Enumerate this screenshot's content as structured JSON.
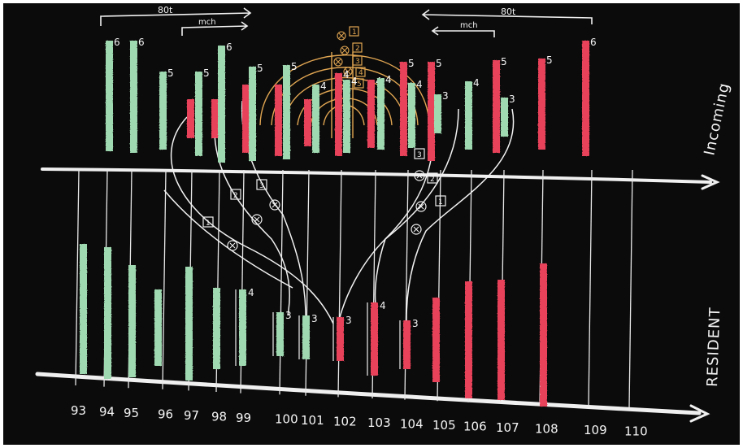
{
  "axes": {
    "top_label": "Incoming",
    "bottom_label": "RESIDENT"
  },
  "ticks": [
    "93",
    "94",
    "95",
    "96",
    "97",
    "98",
    "99",
    "100",
    "101",
    "102",
    "103",
    "104",
    "105",
    "106",
    "107",
    "108",
    "109",
    "110"
  ],
  "top_annotations": {
    "left_range": "80t",
    "left_sub": "mch",
    "right_range": "80t",
    "right_sub": "mch"
  },
  "colors": {
    "board": "#0b0b0b",
    "chalk": "#f2f2f2",
    "green": "#9fd9b1",
    "red": "#e8435a",
    "orange": "#e0a552"
  },
  "incoming_bars": [
    {
      "color": "green",
      "label": "6"
    },
    {
      "color": "green",
      "label": "6"
    },
    {
      "color": "green",
      "label": "5"
    },
    {
      "color": "red",
      "label": "3"
    },
    {
      "color": "green",
      "label": "5"
    },
    {
      "color": "red",
      "label": "3"
    },
    {
      "color": "green",
      "label": "6"
    },
    {
      "color": "red",
      "label": "4"
    },
    {
      "color": "green",
      "label": "5"
    },
    {
      "color": "red",
      "label": "4"
    },
    {
      "color": "green",
      "label": "5"
    },
    {
      "color": "red",
      "label": "3"
    },
    {
      "color": "green",
      "label": "4"
    },
    {
      "color": "red",
      "label": "4"
    },
    {
      "color": "green",
      "label": "4"
    },
    {
      "color": "red",
      "label": "4"
    },
    {
      "color": "green",
      "label": "4"
    },
    {
      "color": "red",
      "label": "5"
    },
    {
      "color": "green",
      "label": "4"
    },
    {
      "color": "red",
      "label": "5"
    },
    {
      "color": "green",
      "label": "3"
    },
    {
      "color": "green",
      "label": "4"
    },
    {
      "color": "red",
      "label": "5"
    },
    {
      "color": "green",
      "label": "3"
    },
    {
      "color": "red",
      "label": "5"
    },
    {
      "color": "red",
      "label": "6"
    }
  ],
  "resident_bars": [
    {
      "color": "green",
      "label": ""
    },
    {
      "color": "green",
      "label": ""
    },
    {
      "color": "green",
      "label": ""
    },
    {
      "color": "green",
      "label": ""
    },
    {
      "color": "green",
      "label": ""
    },
    {
      "color": "green",
      "label": ""
    },
    {
      "color": "green",
      "label": "4"
    },
    {
      "color": "green",
      "label": "3"
    },
    {
      "color": "green",
      "label": "3"
    },
    {
      "color": "red",
      "label": "3"
    },
    {
      "color": "red",
      "label": "4"
    },
    {
      "color": "red",
      "label": "3"
    },
    {
      "color": "red",
      "label": ""
    },
    {
      "color": "red",
      "label": ""
    },
    {
      "color": "red",
      "label": ""
    },
    {
      "color": "red",
      "label": ""
    }
  ],
  "orders": {
    "left_markers": [
      "1",
      "2",
      "3"
    ],
    "right_markers": [
      "3",
      "2",
      "1"
    ],
    "top_markers": [
      "1",
      "2",
      "3",
      "4",
      "5"
    ]
  }
}
